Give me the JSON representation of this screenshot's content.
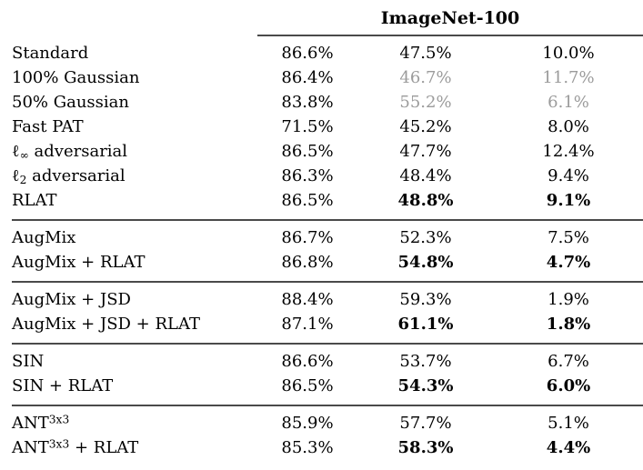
{
  "colors": {
    "muted_value": "#9b9b9b",
    "rule": "#4a4a4a",
    "text": "#000000",
    "background": "#ffffff"
  },
  "table": {
    "header": {
      "group_label": "ImageNet-100"
    },
    "sections": [
      {
        "rows": [
          {
            "label": [
              {
                "t": "Standard"
              }
            ],
            "values": [
              {
                "v": "86.6%"
              },
              {
                "v": "47.5%"
              },
              {
                "v": "10.0%"
              }
            ]
          },
          {
            "label": [
              {
                "t": "100% Gaussian"
              }
            ],
            "values": [
              {
                "v": "86.4%"
              },
              {
                "v": "46.7%",
                "muted": true
              },
              {
                "v": "11.7%",
                "muted": true
              }
            ]
          },
          {
            "label": [
              {
                "t": "50% Gaussian"
              }
            ],
            "values": [
              {
                "v": "83.8%"
              },
              {
                "v": "55.2%",
                "muted": true
              },
              {
                "v": "6.1%",
                "muted": true
              }
            ]
          },
          {
            "label": [
              {
                "t": "Fast PAT"
              }
            ],
            "values": [
              {
                "v": "71.5%"
              },
              {
                "v": "45.2%"
              },
              {
                "v": "8.0%"
              }
            ]
          },
          {
            "label": [
              {
                "t": "ℓ"
              },
              {
                "t": "∞",
                "s": "sub"
              },
              {
                "t": " adversarial"
              }
            ],
            "values": [
              {
                "v": "86.5%"
              },
              {
                "v": "47.7%"
              },
              {
                "v": "12.4%"
              }
            ]
          },
          {
            "label": [
              {
                "t": "ℓ"
              },
              {
                "t": "2",
                "s": "sub"
              },
              {
                "t": " adversarial"
              }
            ],
            "values": [
              {
                "v": "86.3%"
              },
              {
                "v": "48.4%"
              },
              {
                "v": "9.4%"
              }
            ]
          },
          {
            "label": [
              {
                "t": "RLAT"
              }
            ],
            "values": [
              {
                "v": "86.5%"
              },
              {
                "v": "48.8%",
                "bold": true
              },
              {
                "v": "9.1%",
                "bold": true
              }
            ]
          }
        ]
      },
      {
        "rows": [
          {
            "label": [
              {
                "t": "AugMix"
              }
            ],
            "values": [
              {
                "v": "86.7%"
              },
              {
                "v": "52.3%"
              },
              {
                "v": "7.5%"
              }
            ]
          },
          {
            "label": [
              {
                "t": "AugMix + RLAT"
              }
            ],
            "values": [
              {
                "v": "86.8%"
              },
              {
                "v": "54.8%",
                "bold": true
              },
              {
                "v": "4.7%",
                "bold": true
              }
            ]
          }
        ]
      },
      {
        "rows": [
          {
            "label": [
              {
                "t": "AugMix + JSD"
              }
            ],
            "values": [
              {
                "v": "88.4%"
              },
              {
                "v": "59.3%"
              },
              {
                "v": "1.9%"
              }
            ]
          },
          {
            "label": [
              {
                "t": "AugMix + JSD + RLAT"
              }
            ],
            "values": [
              {
                "v": "87.1%"
              },
              {
                "v": "61.1%",
                "bold": true
              },
              {
                "v": "1.8%",
                "bold": true
              }
            ]
          }
        ]
      },
      {
        "rows": [
          {
            "label": [
              {
                "t": "SIN"
              }
            ],
            "values": [
              {
                "v": "86.6%"
              },
              {
                "v": "53.7%"
              },
              {
                "v": "6.7%"
              }
            ]
          },
          {
            "label": [
              {
                "t": "SIN + RLAT"
              }
            ],
            "values": [
              {
                "v": "86.5%"
              },
              {
                "v": "54.3%",
                "bold": true
              },
              {
                "v": "6.0%",
                "bold": true
              }
            ]
          }
        ]
      },
      {
        "rows": [
          {
            "label": [
              {
                "t": "ANT"
              },
              {
                "t": "3x3",
                "s": "sup"
              }
            ],
            "values": [
              {
                "v": "85.9%"
              },
              {
                "v": "57.7%"
              },
              {
                "v": "5.1%"
              }
            ]
          },
          {
            "label": [
              {
                "t": "ANT"
              },
              {
                "t": "3x3",
                "s": "sup"
              },
              {
                "t": " + RLAT"
              }
            ],
            "values": [
              {
                "v": "85.3%"
              },
              {
                "v": "58.3%",
                "bold": true
              },
              {
                "v": "4.4%",
                "bold": true
              }
            ]
          }
        ]
      }
    ]
  }
}
